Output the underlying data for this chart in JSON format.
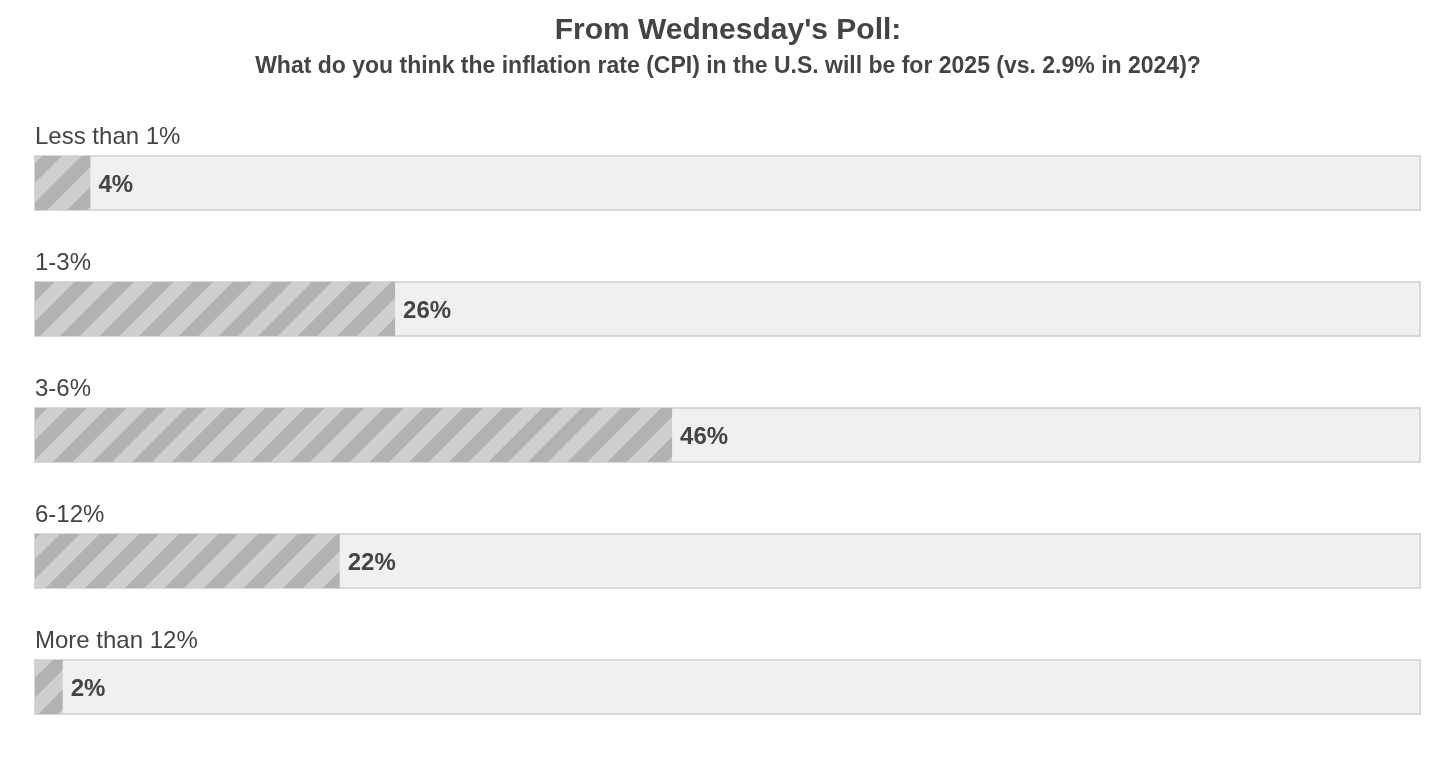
{
  "chart_data": {
    "type": "bar",
    "orientation": "horizontal",
    "title": "From Wednesday's Poll:",
    "subtitle": "What do you think the inflation rate (CPI) in the U.S. will be for 2025 (vs. 2.9% in 2024)?",
    "categories": [
      "Less than 1%",
      "1-3%",
      "3-6%",
      "6-12%",
      "More than 12%"
    ],
    "values": [
      4,
      26,
      46,
      22,
      2
    ],
    "value_labels": [
      "4%",
      "26%",
      "46%",
      "22%",
      "2%"
    ],
    "color": "#cfcfcf"
  }
}
